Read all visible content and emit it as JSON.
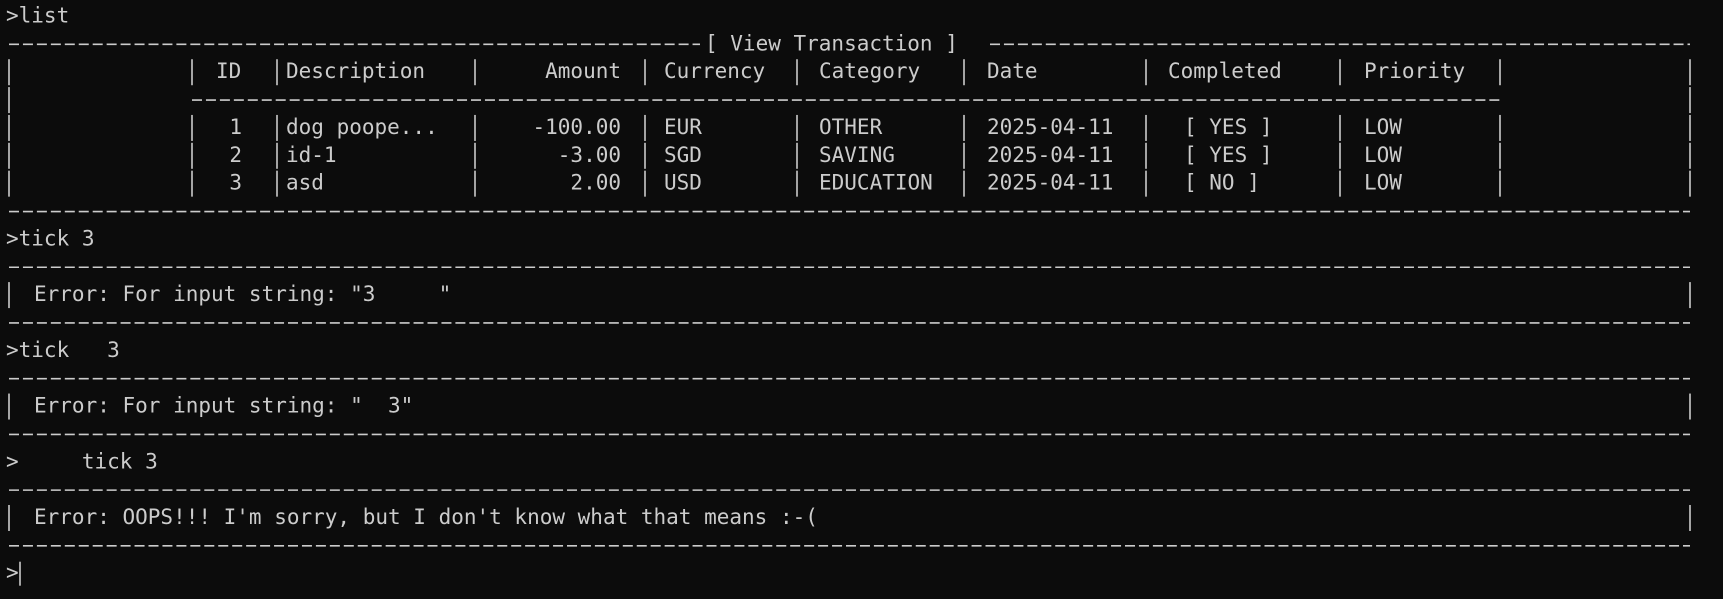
{
  "commands": [
    ">list",
    ">tick 3",
    ">tick   3",
    ">     tick 3"
  ],
  "prompt": ">",
  "table": {
    "title": "[ View Transaction ]",
    "headers": [
      "ID",
      "Description",
      "Amount",
      "Currency",
      "Category",
      "Date",
      "Completed",
      "Priority"
    ],
    "rows": [
      [
        "1",
        "dog poope...",
        "-100.00",
        "EUR",
        "OTHER",
        "2025-04-11",
        "[ YES ]",
        "LOW"
      ],
      [
        "2",
        "id-1",
        "-3.00",
        "SGD",
        "SAVING",
        "2025-04-11",
        "[ YES ]",
        "LOW"
      ],
      [
        "3",
        "asd",
        "2.00",
        "USD",
        "EDUCATION",
        "2025-04-11",
        "[ NO ]",
        "LOW"
      ]
    ]
  },
  "errors": [
    "Error: For input string: \"3     \"",
    "Error: For input string: \"  3\"",
    "Error: OOPS!!! I'm sorry, but I don't know what that means :-("
  ]
}
